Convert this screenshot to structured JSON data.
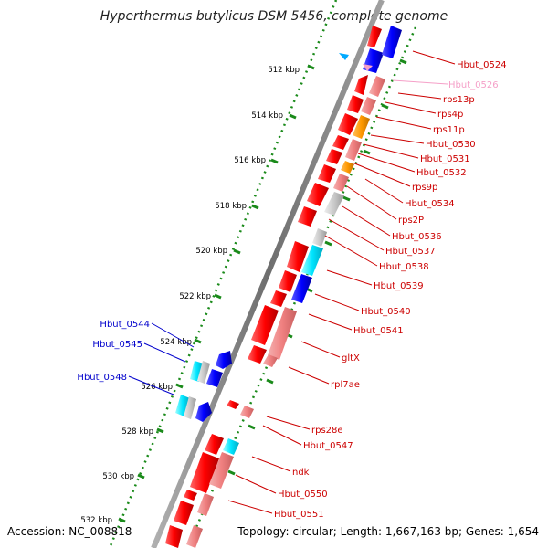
{
  "header": {
    "title": "Hyperthermus butylicus DSM 5456, complete genome"
  },
  "footer": {
    "accession": "Accession: NC_008818",
    "topology": "Topology: circular; Length: 1,667,163 bp; Genes: 1,654"
  },
  "colors": {
    "forward_strand": "#ff0000",
    "reverse_strand_light": "#f08a8a",
    "pseudo_label": "#f5a0c8",
    "rna_cyan": "#00e5ff",
    "blue_gene": "#0000ff",
    "orange_gene": "#ff9900",
    "grey_gene": "#c8c8c8",
    "backbone": "#808080",
    "tick_green": "#1a8a1a",
    "label_red": "#cc0000",
    "label_blue": "#0000cc"
  },
  "scale_ticks": [
    "512 kbp",
    "514 kbp",
    "516 kbp",
    "518 kbp",
    "520 kbp",
    "522 kbp",
    "524 kbp",
    "526 kbp",
    "528 kbp",
    "530 kbp",
    "532 kbp"
  ],
  "gene_labels_right": [
    {
      "name": "Hbut_0524",
      "color": "red"
    },
    {
      "name": "Hbut_0526",
      "color": "pink"
    },
    {
      "name": "rps13p",
      "color": "red"
    },
    {
      "name": "rps4p",
      "color": "red"
    },
    {
      "name": "rps11p",
      "color": "red"
    },
    {
      "name": "Hbut_0530",
      "color": "red"
    },
    {
      "name": "Hbut_0531",
      "color": "red"
    },
    {
      "name": "Hbut_0532",
      "color": "red"
    },
    {
      "name": "rps9p",
      "color": "red"
    },
    {
      "name": "Hbut_0534",
      "color": "red"
    },
    {
      "name": "rps2P",
      "color": "red"
    },
    {
      "name": "Hbut_0536",
      "color": "red"
    },
    {
      "name": "Hbut_0537",
      "color": "red"
    },
    {
      "name": "Hbut_0538",
      "color": "red"
    },
    {
      "name": "Hbut_0539",
      "color": "red"
    },
    {
      "name": "Hbut_0540",
      "color": "red"
    },
    {
      "name": "Hbut_0541",
      "color": "red"
    },
    {
      "name": "gltX",
      "color": "red"
    },
    {
      "name": "rpl7ae",
      "color": "red"
    },
    {
      "name": "rps28e",
      "color": "red"
    },
    {
      "name": "Hbut_0547",
      "color": "red"
    },
    {
      "name": "ndk",
      "color": "red"
    },
    {
      "name": "Hbut_0550",
      "color": "red"
    },
    {
      "name": "Hbut_0551",
      "color": "red"
    }
  ],
  "gene_labels_left": [
    {
      "name": "Hbut_0544",
      "color": "blue"
    },
    {
      "name": "Hbut_0545",
      "color": "blue"
    },
    {
      "name": "Hbut_0548",
      "color": "blue"
    }
  ]
}
